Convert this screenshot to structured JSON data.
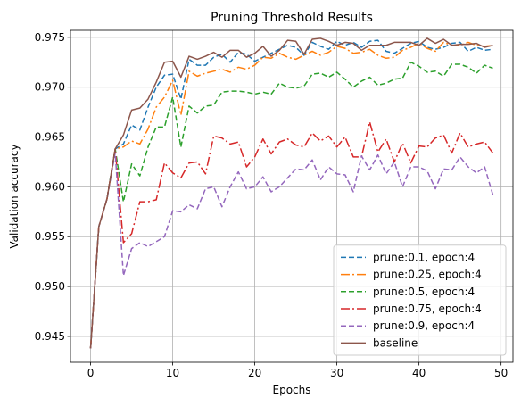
{
  "chart_data": {
    "type": "line",
    "title": "Pruning Threshold Results",
    "xlabel": "Epochs",
    "ylabel": "Validation accuracy",
    "xlim": [
      -2.45,
      51.45
    ],
    "ylim": [
      0.9424,
      0.9757
    ],
    "xticks": [
      0,
      10,
      20,
      30,
      40,
      50
    ],
    "yticks": [
      0.945,
      0.95,
      0.955,
      0.96,
      0.965,
      0.97,
      0.975
    ],
    "grid": true,
    "legend_position": "lower-right",
    "x": [
      0,
      1,
      2,
      3,
      4,
      5,
      6,
      7,
      8,
      9,
      10,
      11,
      12,
      13,
      14,
      15,
      16,
      17,
      18,
      19,
      20,
      21,
      22,
      23,
      24,
      25,
      26,
      27,
      28,
      29,
      30,
      31,
      32,
      33,
      34,
      35,
      36,
      37,
      38,
      39,
      40,
      41,
      42,
      43,
      44,
      45,
      46,
      47,
      48,
      49
    ],
    "series": [
      {
        "name": "prune:0.1, epoch:4",
        "color": "#1f77b4",
        "dash": "6,3",
        "values": [
          0.9438,
          0.956,
          0.9588,
          0.9638,
          0.9643,
          0.9662,
          0.9657,
          0.968,
          0.97,
          0.9712,
          0.9713,
          0.9688,
          0.9728,
          0.9722,
          0.9722,
          0.973,
          0.9733,
          0.9725,
          0.9735,
          0.9733,
          0.9726,
          0.973,
          0.9734,
          0.9738,
          0.9742,
          0.974,
          0.9732,
          0.9745,
          0.9741,
          0.9738,
          0.9746,
          0.9742,
          0.9745,
          0.974,
          0.9746,
          0.9747,
          0.9736,
          0.9734,
          0.9739,
          0.9744,
          0.9746,
          0.974,
          0.9738,
          0.974,
          0.9744,
          0.9745,
          0.9736,
          0.974,
          0.9737,
          0.9738
        ]
      },
      {
        "name": "prune:0.25, epoch:4",
        "color": "#ff7f0e",
        "dash": "10,3,2,3",
        "values": [
          0.9438,
          0.956,
          0.9588,
          0.9638,
          0.964,
          0.9646,
          0.9643,
          0.9658,
          0.968,
          0.969,
          0.9707,
          0.9672,
          0.9716,
          0.9711,
          0.9714,
          0.9716,
          0.9718,
          0.9715,
          0.972,
          0.9718,
          0.9722,
          0.973,
          0.9729,
          0.9734,
          0.973,
          0.9728,
          0.9732,
          0.9736,
          0.9732,
          0.9735,
          0.9741,
          0.9739,
          0.9734,
          0.9735,
          0.9738,
          0.9732,
          0.9729,
          0.973,
          0.9737,
          0.974,
          0.9744,
          0.9739,
          0.9736,
          0.9745,
          0.9742,
          0.9742,
          0.9745,
          0.9742,
          0.9741,
          0.9742
        ]
      },
      {
        "name": "prune:0.5, epoch:4",
        "color": "#2ca02c",
        "dash": "6,3",
        "values": [
          0.9438,
          0.956,
          0.9588,
          0.9638,
          0.9585,
          0.9623,
          0.9611,
          0.964,
          0.966,
          0.966,
          0.969,
          0.964,
          0.9681,
          0.9674,
          0.9681,
          0.9682,
          0.9695,
          0.9696,
          0.9696,
          0.9695,
          0.9693,
          0.9695,
          0.9693,
          0.9704,
          0.97,
          0.9699,
          0.9701,
          0.9713,
          0.9714,
          0.971,
          0.9715,
          0.9708,
          0.97,
          0.9706,
          0.971,
          0.9702,
          0.9704,
          0.9708,
          0.9709,
          0.9725,
          0.9721,
          0.9715,
          0.9716,
          0.9711,
          0.9723,
          0.9723,
          0.972,
          0.9714,
          0.9722,
          0.9719
        ]
      },
      {
        "name": "prune:0.75, epoch:4",
        "color": "#d62728",
        "dash": "10,3,2,3",
        "values": [
          0.9438,
          0.956,
          0.9588,
          0.9638,
          0.9544,
          0.9553,
          0.9585,
          0.9585,
          0.9587,
          0.9624,
          0.9614,
          0.9609,
          0.9624,
          0.9625,
          0.9613,
          0.9651,
          0.9649,
          0.9643,
          0.9645,
          0.962,
          0.963,
          0.9648,
          0.9633,
          0.9645,
          0.9648,
          0.9642,
          0.964,
          0.9654,
          0.9646,
          0.9651,
          0.964,
          0.965,
          0.963,
          0.963,
          0.9665,
          0.9635,
          0.9648,
          0.9625,
          0.9644,
          0.9624,
          0.9641,
          0.964,
          0.9649,
          0.9652,
          0.9634,
          0.9654,
          0.964,
          0.9643,
          0.9645,
          0.9634
        ]
      },
      {
        "name": "prune:0.9, epoch:4",
        "color": "#9467bd",
        "dash": "6,3",
        "values": [
          0.9438,
          0.956,
          0.9588,
          0.9634,
          0.9511,
          0.9538,
          0.9544,
          0.954,
          0.9545,
          0.955,
          0.9576,
          0.9575,
          0.9582,
          0.9578,
          0.9598,
          0.96,
          0.958,
          0.96,
          0.9615,
          0.9598,
          0.96,
          0.961,
          0.9595,
          0.96,
          0.9609,
          0.9618,
          0.9617,
          0.9627,
          0.9607,
          0.962,
          0.9613,
          0.9612,
          0.9595,
          0.9631,
          0.9617,
          0.9632,
          0.9613,
          0.9625,
          0.96,
          0.962,
          0.962,
          0.9616,
          0.9598,
          0.9618,
          0.9617,
          0.963,
          0.962,
          0.9614,
          0.962,
          0.9592
        ]
      },
      {
        "name": "baseline",
        "color": "#8c564b",
        "dash": "",
        "values": [
          0.9438,
          0.956,
          0.9588,
          0.9638,
          0.9652,
          0.9677,
          0.9679,
          0.9688,
          0.9705,
          0.9725,
          0.9726,
          0.971,
          0.9731,
          0.9728,
          0.9731,
          0.9735,
          0.973,
          0.9737,
          0.9737,
          0.973,
          0.9734,
          0.9741,
          0.9731,
          0.9737,
          0.9747,
          0.9746,
          0.9733,
          0.9748,
          0.9749,
          0.9746,
          0.9742,
          0.9745,
          0.9744,
          0.9737,
          0.9742,
          0.9742,
          0.9742,
          0.9745,
          0.9745,
          0.9745,
          0.9742,
          0.9749,
          0.9744,
          0.9748,
          0.9742,
          0.9743,
          0.9743,
          0.9744,
          0.974,
          0.9742
        ]
      }
    ]
  }
}
